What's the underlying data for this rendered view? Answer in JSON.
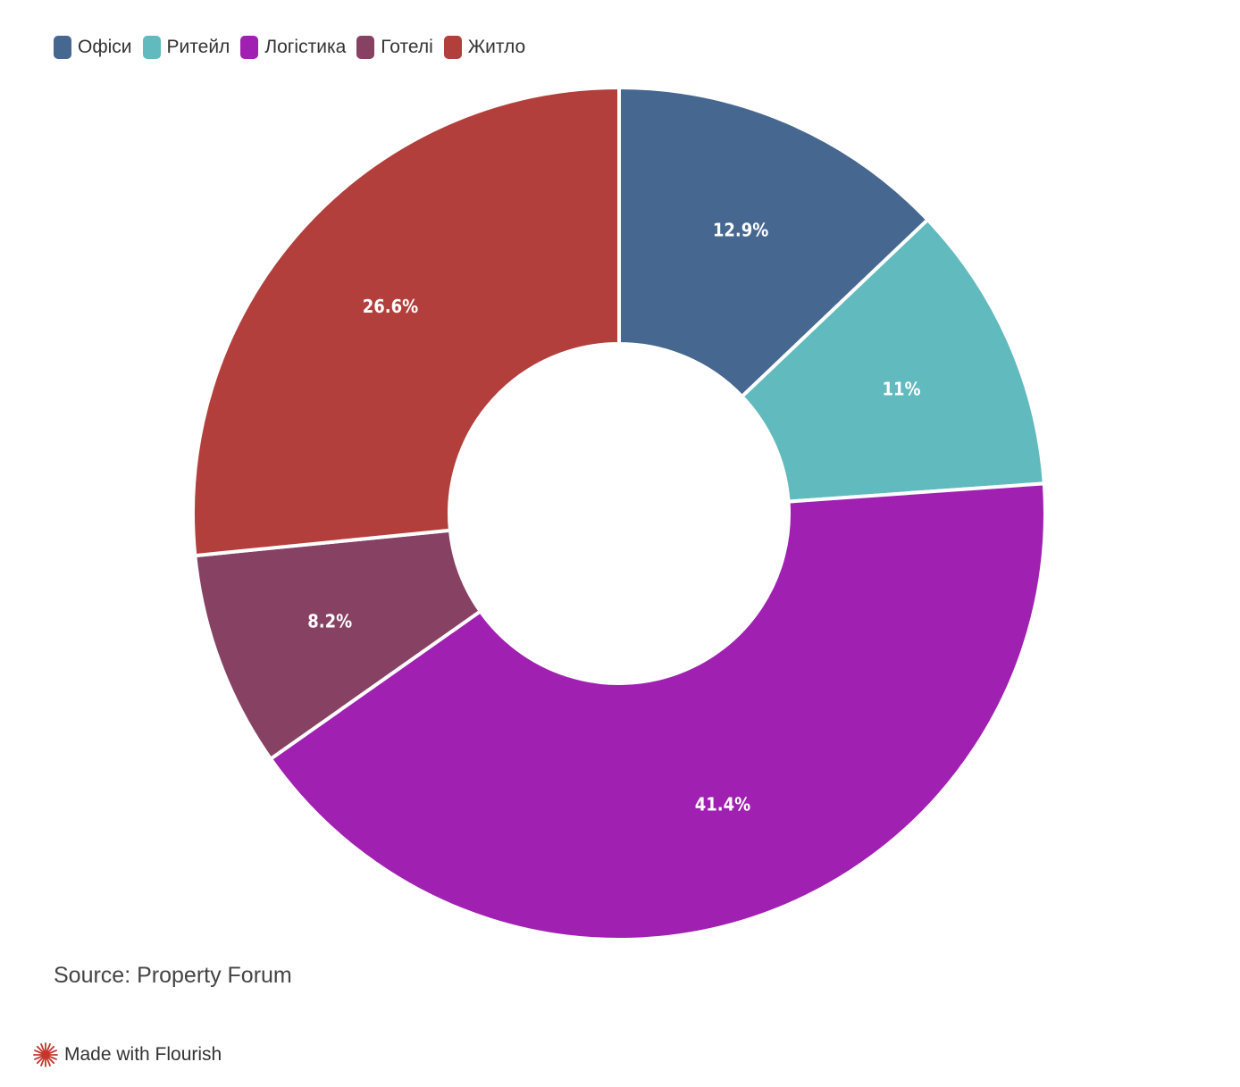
{
  "chart_data": {
    "type": "pie",
    "variant": "donut",
    "categories": [
      "Офіси",
      "Ритейл",
      "Логістика",
      "Готелі",
      "Житло"
    ],
    "values": [
      12.9,
      11,
      41.4,
      8.2,
      26.6
    ],
    "value_labels": [
      "12.9%",
      "11%",
      "41.4%",
      "8.2%",
      "26.6%"
    ],
    "colors": [
      "#466790",
      "#61babe",
      "#a020b1",
      "#874163",
      "#b23f3b"
    ],
    "legend_position": "top-left",
    "start_angle": "top",
    "direction": "clockwise"
  },
  "legend": {
    "items": [
      {
        "label": "Офіси",
        "color": "#466790"
      },
      {
        "label": "Ритейл",
        "color": "#61babe"
      },
      {
        "label": "Логістика",
        "color": "#a020b1"
      },
      {
        "label": "Готелі",
        "color": "#874163"
      },
      {
        "label": "Житло",
        "color": "#b23f3b"
      }
    ]
  },
  "source_text": "Source: Property Forum",
  "footer": {
    "text": "Made with Flourish",
    "icon": "flourish-logo-icon",
    "icon_color": "#c6342b"
  }
}
